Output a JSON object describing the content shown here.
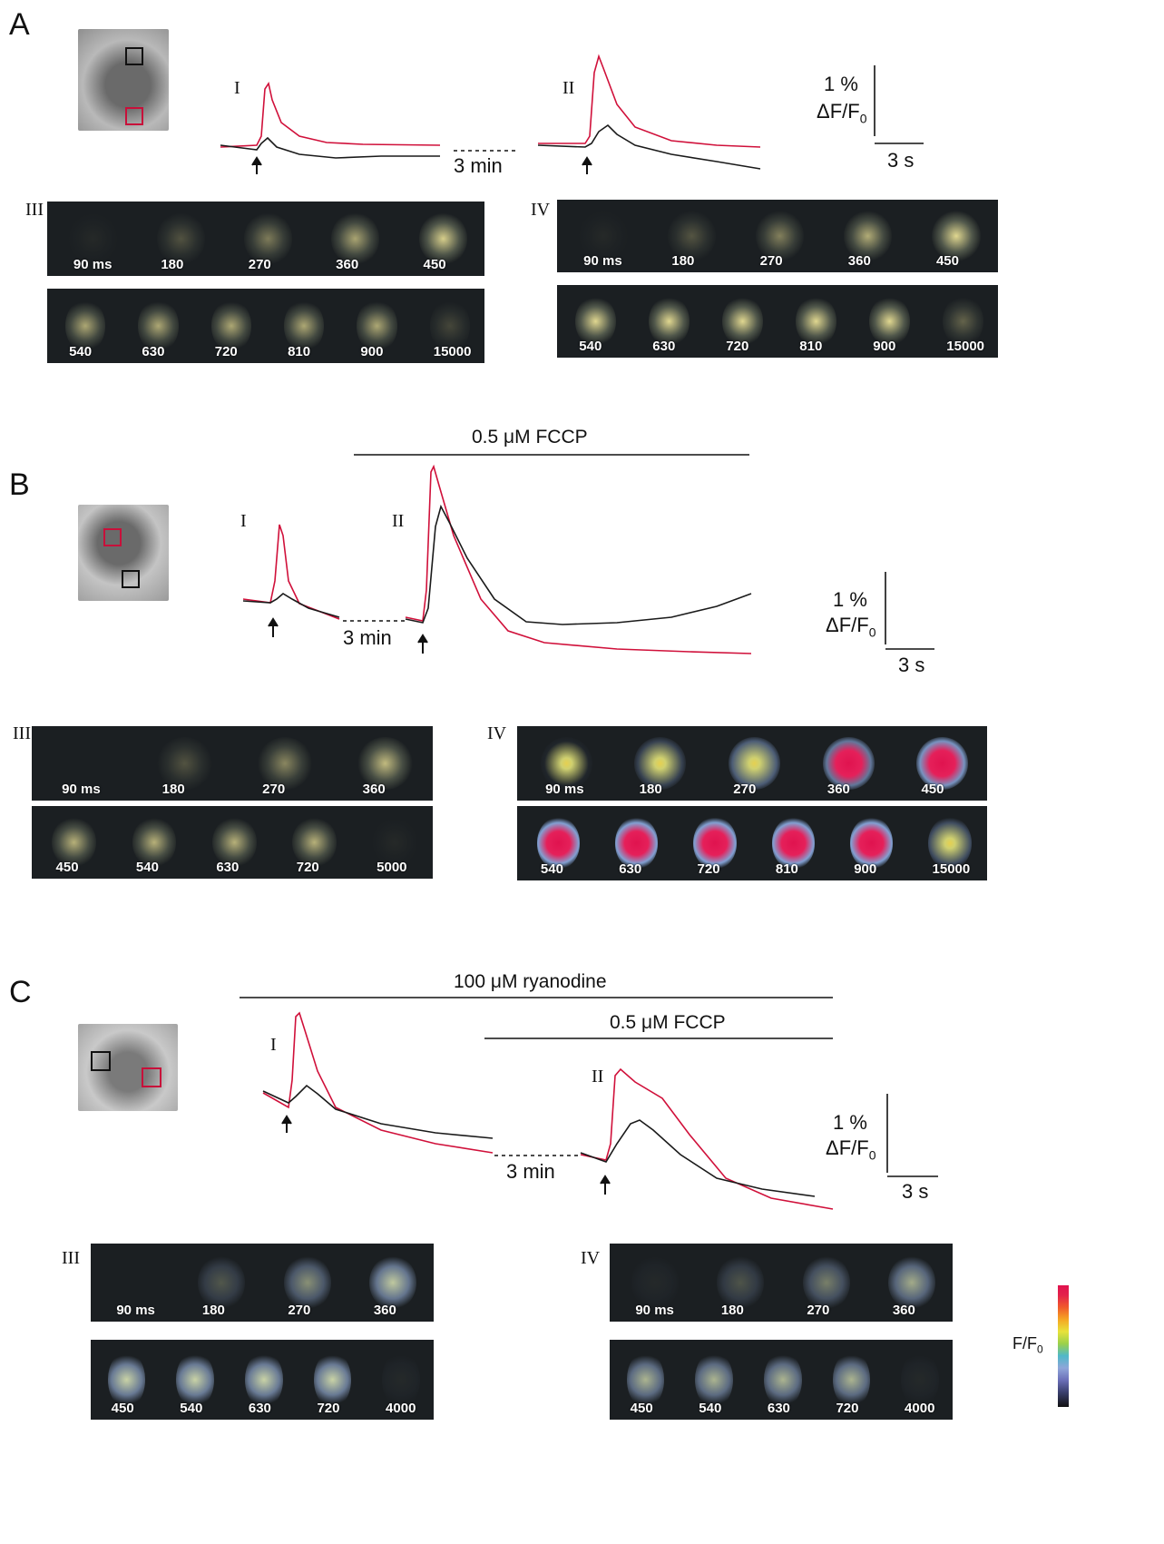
{
  "colors": {
    "red": "#d0103a",
    "black": "#1a1a1a"
  },
  "panels": [
    {
      "letter": "A",
      "trace1": "I",
      "trace2": "II",
      "gap": "3 min",
      "scale_pct": "1 %",
      "scale_unit": "ΔF/F",
      "scale_sub": "0",
      "scale_time": "3 s",
      "stripA": "III",
      "stripB": "IV",
      "A_top": [
        "90 ms",
        "180",
        "270",
        "360",
        "450"
      ],
      "A_bot": [
        "540",
        "630",
        "720",
        "810",
        "900",
        "15000"
      ],
      "B_top": [
        "90 ms",
        "180",
        "270",
        "360",
        "450"
      ],
      "B_bot": [
        "540",
        "630",
        "720",
        "810",
        "900",
        "15000"
      ]
    },
    {
      "letter": "B",
      "drug": "0.5 μM FCCP",
      "trace1": "I",
      "trace2": "II",
      "gap": "3 min",
      "scale_pct": "1 %",
      "scale_unit": "ΔF/F",
      "scale_sub": "0",
      "scale_time": "3 s",
      "stripA": "III",
      "stripB": "IV",
      "A_top": [
        "90 ms",
        "180",
        "270",
        "360"
      ],
      "A_bot": [
        "450",
        "540",
        "630",
        "720",
        "5000"
      ],
      "B_top": [
        "90 ms",
        "180",
        "270",
        "360",
        "450"
      ],
      "B_bot": [
        "540",
        "630",
        "720",
        "810",
        "900",
        "15000"
      ]
    },
    {
      "letter": "C",
      "drug1": "100 μM ryanodine",
      "drug2": "0.5 μM FCCP",
      "trace1": "I",
      "trace2": "II",
      "gap": "3 min",
      "scale_pct": "1 %",
      "scale_unit": "ΔF/F",
      "scale_sub": "0",
      "scale_time": "3 s",
      "stripA": "III",
      "stripB": "IV",
      "A_top": [
        "90 ms",
        "180",
        "270",
        "360"
      ],
      "A_bot": [
        "450",
        "540",
        "630",
        "720",
        "4000"
      ],
      "B_top": [
        "90 ms",
        "180",
        "270",
        "360"
      ],
      "B_bot": [
        "450",
        "540",
        "630",
        "720",
        "4000"
      ]
    }
  ],
  "colorbar": {
    "label": "F/F",
    "sub": "0"
  }
}
